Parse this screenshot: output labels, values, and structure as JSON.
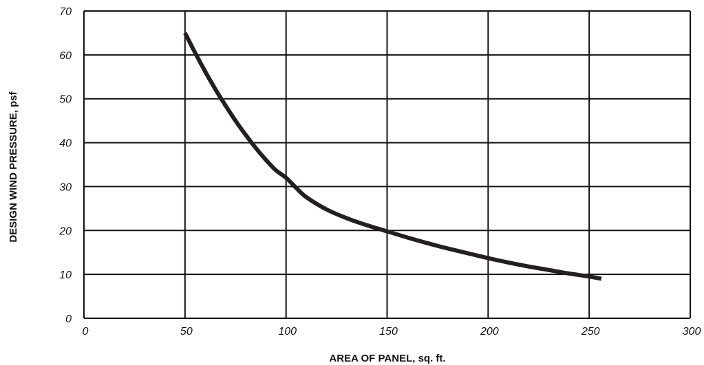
{
  "chart_data": {
    "type": "line",
    "title": "",
    "xlabel": "AREA OF PANEL, sq. ft.",
    "ylabel": "DESIGN WIND PRESSURE, psf",
    "xlim": [
      0,
      300
    ],
    "ylim": [
      0,
      70
    ],
    "xticks": [
      0,
      50,
      100,
      150,
      200,
      250,
      300
    ],
    "yticks": [
      0,
      10,
      20,
      30,
      40,
      50,
      60,
      70
    ],
    "grid": true,
    "series": [
      {
        "x": [
          50,
          55,
          60,
          65,
          70,
          75,
          80,
          85,
          90,
          95,
          100,
          105,
          110,
          120,
          130,
          140,
          150,
          160,
          170,
          180,
          190,
          200,
          210,
          220,
          230,
          240,
          250,
          256
        ],
        "y": [
          65,
          60.5,
          56.2,
          52.2,
          48.5,
          45,
          41.8,
          38.8,
          36.1,
          33.7,
          32,
          29.7,
          27.6,
          24.8,
          22.8,
          21.2,
          19.8,
          18.4,
          17.1,
          15.9,
          14.8,
          13.7,
          12.7,
          11.8,
          11,
          10.2,
          9.5,
          9
        ]
      }
    ],
    "colors": {
      "curve": "#231f20",
      "grid": "#111111",
      "background": "#ffffff"
    }
  }
}
